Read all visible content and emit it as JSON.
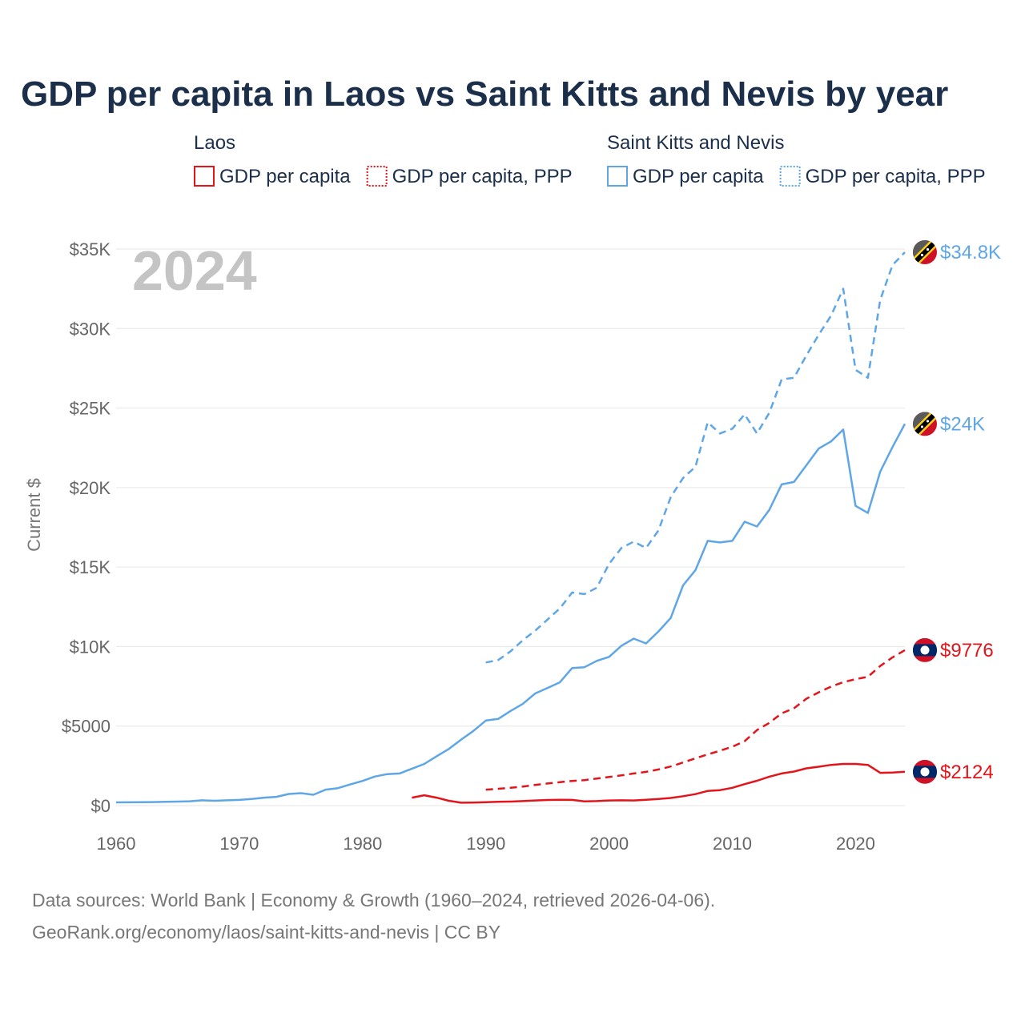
{
  "colors": {
    "laos": "#e3141a",
    "skn": "#5ea6e6",
    "title": "#1b2f4b",
    "grid": "#e6e6e6",
    "tick": "#666666"
  },
  "chart_data": {
    "type": "line",
    "title": "GDP per capita in Laos vs Saint Kitts and Nevis by year",
    "ylabel": "Current $",
    "xlabel": "",
    "xlim": [
      1960,
      2024
    ],
    "ylim": [
      0,
      35000
    ],
    "grid": true,
    "legend_position": "top",
    "current_year": "2024",
    "x_ticks": [
      {
        "value": 1960,
        "label": "1960"
      },
      {
        "value": 1970,
        "label": "1970"
      },
      {
        "value": 1980,
        "label": "1980"
      },
      {
        "value": 1990,
        "label": "1990"
      },
      {
        "value": 2000,
        "label": "2000"
      },
      {
        "value": 2010,
        "label": "2010"
      },
      {
        "value": 2020,
        "label": "2020"
      }
    ],
    "y_ticks": [
      {
        "value": 0,
        "label": "$0"
      },
      {
        "value": 5000,
        "label": "$5000"
      },
      {
        "value": 10000,
        "label": "$10K"
      },
      {
        "value": 15000,
        "label": "$15K"
      },
      {
        "value": 20000,
        "label": "$20K"
      },
      {
        "value": 25000,
        "label": "$25K"
      },
      {
        "value": 30000,
        "label": "$30K"
      },
      {
        "value": 35000,
        "label": "$35K"
      }
    ],
    "legend": [
      {
        "group": "Laos",
        "items": [
          {
            "name": "GDP per capita",
            "style": "solid",
            "color_key": "laos"
          },
          {
            "name": "GDP per capita, PPP",
            "style": "dotted",
            "color_key": "laos"
          }
        ]
      },
      {
        "group": "Saint Kitts and Nevis",
        "items": [
          {
            "name": "GDP per capita",
            "style": "solid",
            "color_key": "skn"
          },
          {
            "name": "GDP per capita, PPP",
            "style": "dotted",
            "color_key": "skn"
          }
        ]
      }
    ],
    "series": [
      {
        "name": "Saint Kitts and Nevis GDP per capita, PPP",
        "country": "skn",
        "dashed": true,
        "end_label": "$34.8K",
        "x": [
          1990,
          1991,
          1992,
          1993,
          1994,
          1995,
          1996,
          1997,
          1998,
          1999,
          2000,
          2001,
          2002,
          2003,
          2004,
          2005,
          2006,
          2007,
          2008,
          2009,
          2010,
          2011,
          2012,
          2013,
          2014,
          2015,
          2016,
          2017,
          2018,
          2019,
          2020,
          2021,
          2022,
          2023,
          2024
        ],
        "y": [
          9000,
          9150,
          9700,
          10400,
          11000,
          11700,
          12400,
          13400,
          13300,
          13700,
          15200,
          16200,
          16600,
          16200,
          17300,
          19400,
          20600,
          21300,
          24100,
          23400,
          23700,
          24600,
          23400,
          24700,
          26800,
          26900,
          28300,
          29600,
          30800,
          32500,
          27400,
          26900,
          31800,
          34000,
          34800
        ]
      },
      {
        "name": "Saint Kitts and Nevis GDP per capita",
        "country": "skn",
        "dashed": false,
        "end_label": "$24K",
        "x": [
          1960,
          1961,
          1962,
          1963,
          1964,
          1965,
          1966,
          1967,
          1968,
          1969,
          1970,
          1971,
          1972,
          1973,
          1974,
          1975,
          1976,
          1977,
          1978,
          1979,
          1980,
          1981,
          1982,
          1983,
          1984,
          1985,
          1986,
          1987,
          1988,
          1989,
          1990,
          1991,
          1992,
          1993,
          1994,
          1995,
          1996,
          1997,
          1998,
          1999,
          2000,
          2001,
          2002,
          2003,
          2004,
          2005,
          2006,
          2007,
          2008,
          2009,
          2010,
          2011,
          2012,
          2013,
          2014,
          2015,
          2016,
          2017,
          2018,
          2019,
          2020,
          2021,
          2022,
          2023,
          2024
        ],
        "y": [
          200,
          205,
          210,
          220,
          235,
          250,
          270,
          330,
          300,
          330,
          360,
          420,
          500,
          550,
          730,
          780,
          680,
          1000,
          1100,
          1330,
          1550,
          1830,
          1980,
          2020,
          2320,
          2620,
          3100,
          3560,
          4150,
          4700,
          5350,
          5450,
          5950,
          6400,
          7050,
          7400,
          7750,
          8650,
          8700,
          9100,
          9350,
          10050,
          10500,
          10200,
          10950,
          11800,
          13850,
          14800,
          16650,
          16550,
          16650,
          17850,
          17550,
          18600,
          20200,
          20350,
          21400,
          22450,
          22900,
          23650,
          18850,
          18400,
          21000,
          22550,
          24000
        ]
      },
      {
        "name": "Laos GDP per capita, PPP",
        "country": "laos",
        "dashed": true,
        "end_label": "$9776",
        "x": [
          1990,
          1991,
          1992,
          1993,
          1994,
          1995,
          1996,
          1997,
          1998,
          1999,
          2000,
          2001,
          2002,
          2003,
          2004,
          2005,
          2006,
          2007,
          2008,
          2009,
          2010,
          2011,
          2012,
          2013,
          2014,
          2015,
          2016,
          2017,
          2018,
          2019,
          2020,
          2021,
          2022,
          2023,
          2024
        ],
        "y": [
          1000,
          1060,
          1120,
          1200,
          1300,
          1390,
          1470,
          1550,
          1600,
          1700,
          1800,
          1900,
          2020,
          2120,
          2270,
          2460,
          2710,
          2970,
          3220,
          3450,
          3700,
          4050,
          4750,
          5200,
          5800,
          6120,
          6720,
          7120,
          7480,
          7760,
          7950,
          8100,
          8780,
          9320,
          9776
        ]
      },
      {
        "name": "Laos GDP per capita",
        "country": "laos",
        "dashed": false,
        "end_label": "$2124",
        "x": [
          1984,
          1985,
          1986,
          1987,
          1988,
          1989,
          1990,
          1991,
          1992,
          1993,
          1994,
          1995,
          1996,
          1997,
          1998,
          1999,
          2000,
          2001,
          2002,
          2003,
          2004,
          2005,
          2006,
          2007,
          2008,
          2009,
          2010,
          2011,
          2012,
          2013,
          2014,
          2015,
          2016,
          2017,
          2018,
          2019,
          2020,
          2021,
          2022,
          2023,
          2024
        ],
        "y": [
          500,
          650,
          500,
          300,
          180,
          190,
          210,
          240,
          250,
          280,
          320,
          350,
          370,
          360,
          260,
          280,
          320,
          330,
          320,
          370,
          420,
          480,
          590,
          720,
          920,
          970,
          1120,
          1350,
          1560,
          1820,
          2020,
          2140,
          2340,
          2440,
          2560,
          2620,
          2620,
          2560,
          2060,
          2080,
          2124
        ]
      }
    ]
  },
  "footer": {
    "source_line1": "Data sources: World Bank | Economy & Growth (1960–2024, retrieved 2026-04-06).",
    "source_line2": "GeoRank.org/economy/laos/saint-kitts-and-nevis | CC BY"
  }
}
